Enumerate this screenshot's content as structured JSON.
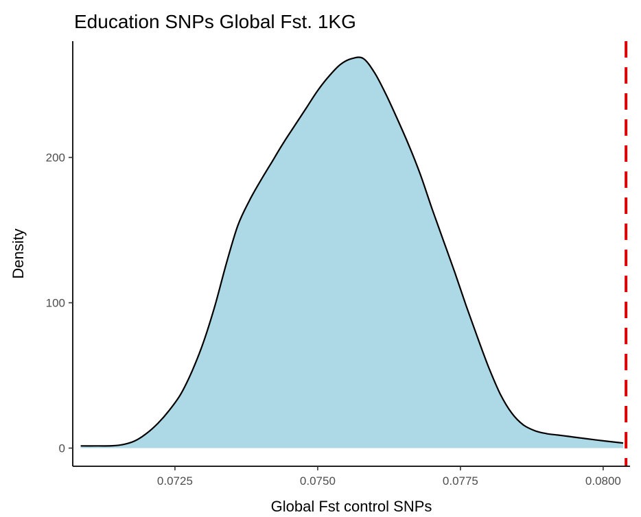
{
  "chart_data": {
    "type": "area",
    "title": "Education SNPs Global Fst. 1KG",
    "xlabel": "Global Fst control SNPs",
    "ylabel": "Density",
    "xlim": [
      0.07071,
      0.08047
    ],
    "ylim": [
      -12.5,
      280
    ],
    "x_ticks": [
      {
        "value": 0.0725,
        "label": "0.0725"
      },
      {
        "value": 0.075,
        "label": "0.0750"
      },
      {
        "value": 0.0775,
        "label": "0.0775"
      },
      {
        "value": 0.08,
        "label": "0.0800"
      }
    ],
    "y_ticks": [
      {
        "value": 0,
        "label": "0"
      },
      {
        "value": 100,
        "label": "100"
      },
      {
        "value": 200,
        "label": "200"
      }
    ],
    "series": [
      {
        "fill": "#add8e6",
        "stroke": "#000000",
        "x": [
          0.07085,
          0.0711,
          0.0714,
          0.0716,
          0.0718,
          0.072,
          0.0722,
          0.0724,
          0.0726,
          0.0728,
          0.073,
          0.0732,
          0.0734,
          0.0736,
          0.0738,
          0.074,
          0.0742,
          0.0744,
          0.0746,
          0.0748,
          0.075,
          0.0752,
          0.0754,
          0.0756,
          0.0758,
          0.076,
          0.0762,
          0.0764,
          0.0766,
          0.0768,
          0.077,
          0.0772,
          0.0774,
          0.0776,
          0.0778,
          0.078,
          0.0782,
          0.0784,
          0.0786,
          0.0788,
          0.079,
          0.0792,
          0.0794,
          0.0796,
          0.0798,
          0.08,
          0.08035
        ],
        "y": [
          1.5,
          1.5,
          1.6,
          2.5,
          5,
          10,
          17,
          26,
          37,
          53,
          73,
          98,
          127,
          153,
          170,
          184,
          197,
          210,
          222,
          234,
          246,
          256,
          264,
          268,
          268,
          258,
          243,
          226,
          208,
          188,
          165,
          143,
          121,
          98,
          76,
          55,
          37,
          24,
          16,
          12,
          10,
          9,
          8,
          7,
          6,
          5,
          3.5
        ]
      }
    ],
    "reference_line": {
      "x": 0.0804,
      "color": "#dd0000",
      "style": "dashed"
    },
    "grid": false,
    "legend": "none"
  }
}
